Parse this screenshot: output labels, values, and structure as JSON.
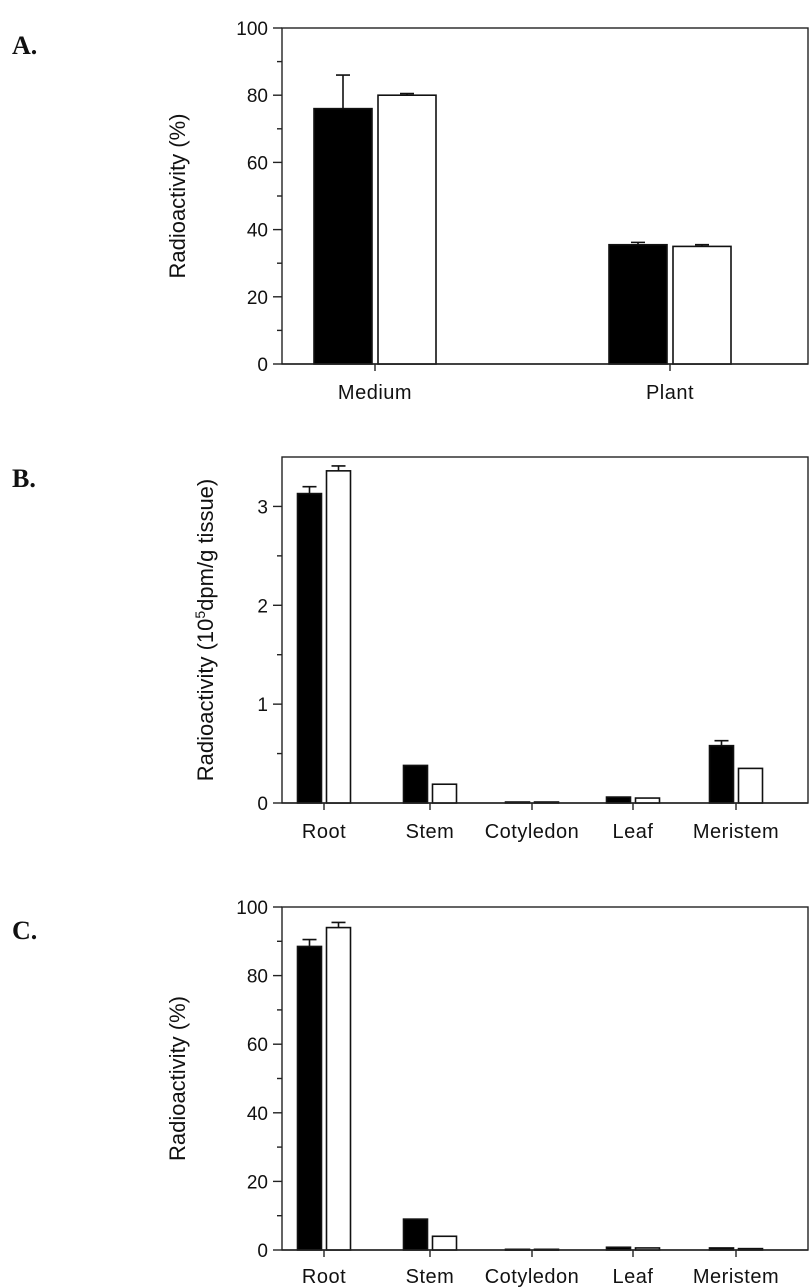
{
  "chart_data": [
    {
      "panel": "A.",
      "type": "bar",
      "ylabel": "Radioactivity (%)",
      "ylabel_sup": "",
      "ylabel_post": "",
      "ylim": [
        0,
        100
      ],
      "yticks": [
        0,
        20,
        40,
        60,
        80,
        100
      ],
      "yminor": [
        10,
        30,
        50,
        70,
        90
      ],
      "categories": [
        "Medium",
        "Plant"
      ],
      "series": [
        {
          "fill": "#000000",
          "values": [
            76,
            35.5
          ],
          "errors": [
            10,
            0.7
          ]
        },
        {
          "fill": "#ffffff",
          "values": [
            80,
            35
          ],
          "errors": [
            0.5,
            0.5
          ]
        }
      ]
    },
    {
      "panel": "B.",
      "type": "bar",
      "ylabel": "Radioactivity (10",
      "ylabel_sup": "5",
      "ylabel_post": "dpm/g tissue)",
      "ylim": [
        0,
        3.5
      ],
      "yticks": [
        0,
        1,
        2,
        3
      ],
      "yminor": [
        0.5,
        1.5,
        2.5
      ],
      "categories": [
        "Root",
        "Stem",
        "Cotyledon",
        "Leaf",
        "Meristem"
      ],
      "series": [
        {
          "fill": "#000000",
          "values": [
            3.13,
            0.38,
            0.01,
            0.06,
            0.58
          ],
          "errors": [
            0.07,
            0.0,
            0.0,
            0.0,
            0.05
          ]
        },
        {
          "fill": "#ffffff",
          "values": [
            3.36,
            0.19,
            0.01,
            0.05,
            0.35
          ],
          "errors": [
            0.05,
            0.0,
            0.0,
            0.0,
            0.0
          ]
        }
      ]
    },
    {
      "panel": "C.",
      "type": "bar",
      "ylabel": "Radioactivity (%)",
      "ylabel_sup": "",
      "ylabel_post": "",
      "ylim": [
        0,
        100
      ],
      "yticks": [
        0,
        20,
        40,
        60,
        80,
        100
      ],
      "yminor": [
        10,
        30,
        50,
        70,
        90
      ],
      "categories": [
        "Root",
        "Stem",
        "Cotyledon",
        "Leaf",
        "Meristem"
      ],
      "series": [
        {
          "fill": "#000000",
          "values": [
            88.5,
            9,
            0.2,
            0.8,
            0.6
          ],
          "errors": [
            2,
            0,
            0,
            0,
            0
          ]
        },
        {
          "fill": "#ffffff",
          "values": [
            94,
            4,
            0.2,
            0.6,
            0.4
          ],
          "errors": [
            1.5,
            0,
            0,
            0,
            0
          ]
        }
      ]
    }
  ]
}
